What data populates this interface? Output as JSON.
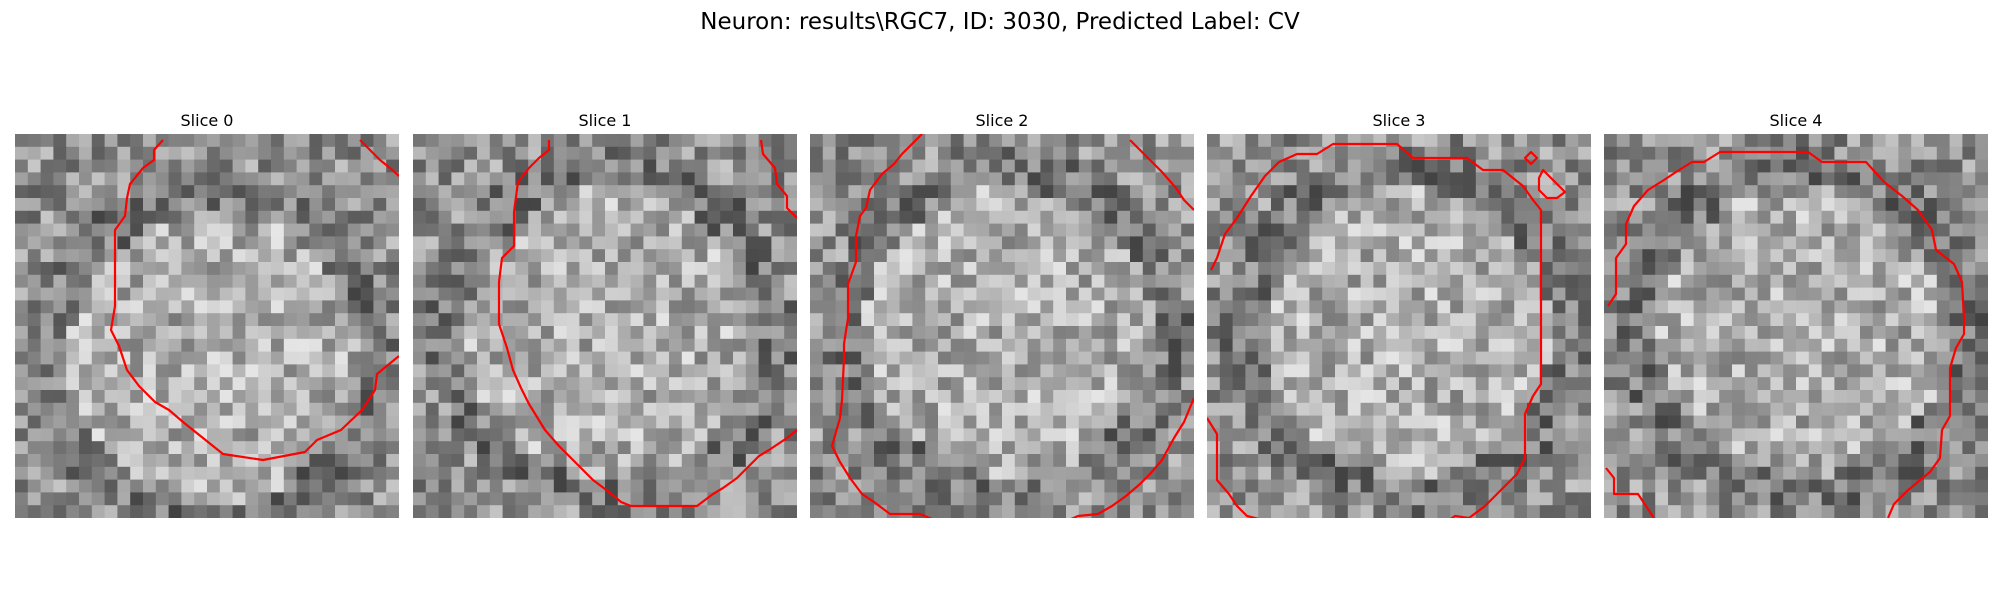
{
  "figure": {
    "title": "Neuron: results\\RGC7, ID: 3030, Predicted Label: CV"
  },
  "panels": [
    {
      "title": "Slice 0",
      "seed": 11,
      "contour_color": "#ff0000"
    },
    {
      "title": "Slice 1",
      "seed": 23,
      "contour_color": "#ff0000"
    },
    {
      "title": "Slice 2",
      "seed": 37,
      "contour_color": "#ff0000"
    },
    {
      "title": "Slice 3",
      "seed": 41,
      "contour_color": "#ff0000"
    },
    {
      "title": "Slice 4",
      "seed": 59,
      "contour_color": "#ff0000"
    }
  ],
  "colormap": "gray",
  "grid_cells": 30
}
